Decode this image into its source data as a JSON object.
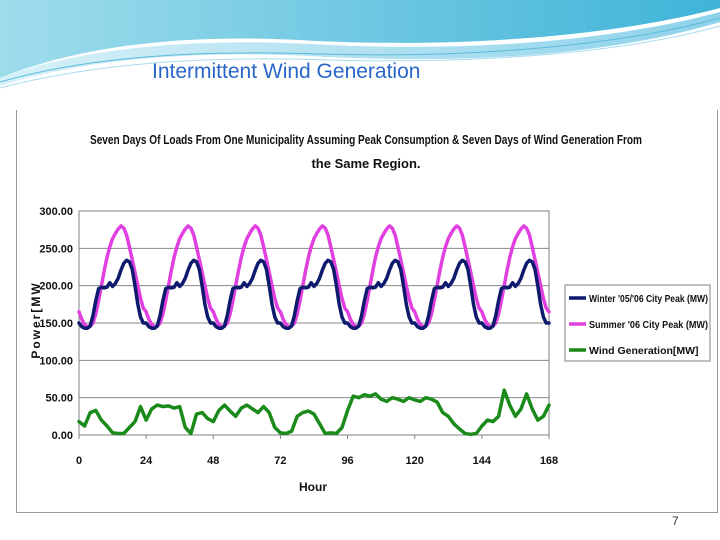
{
  "slide": {
    "title": "Intermittent Wind Generation",
    "page_number": "7"
  },
  "chart_data": {
    "type": "line",
    "title_line1": "Seven Days Of Loads From One Municipality Assuming Peak Consumption & Seven Days of Wind Generation From",
    "title_line2": "the Same Region.",
    "xlabel": "Hour",
    "ylabel": "Power[MW",
    "xlim": [
      0,
      168
    ],
    "ylim": [
      0,
      300
    ],
    "x_ticks": [
      "0",
      "24",
      "48",
      "72",
      "96",
      "120",
      "144",
      "168"
    ],
    "y_ticks": [
      "0.00",
      "50.00",
      "100.00",
      "150.00",
      "200.00",
      "250.00",
      "300.00"
    ],
    "grid": "horizontal",
    "legend_position": "right",
    "series": [
      {
        "name": "Winter '05/'06 City Peak (MW)",
        "color": "#0d1a6e",
        "x": [
          0,
          1,
          2,
          3,
          4,
          5,
          6,
          7,
          8,
          9,
          10,
          11,
          12,
          13,
          14,
          15,
          16,
          17,
          18,
          19,
          20,
          21,
          22,
          23
        ],
        "y_daily_profile": [
          150,
          145,
          143,
          143,
          146,
          160,
          180,
          196,
          198,
          197,
          198,
          204,
          199,
          203,
          210,
          221,
          230,
          234,
          232,
          222,
          200,
          175,
          158,
          150
        ],
        "repeat_days": 7
      },
      {
        "name": "Summer '06 City Peak (MW)",
        "color": "#e040e0",
        "x": [
          0,
          1,
          2,
          3,
          4,
          5,
          6,
          7,
          8,
          9,
          10,
          11,
          12,
          13,
          14,
          15,
          16,
          17,
          18,
          19,
          20,
          21,
          22,
          23
        ],
        "y_daily_profile": [
          165,
          155,
          148,
          145,
          146,
          150,
          162,
          180,
          200,
          220,
          238,
          252,
          263,
          270,
          276,
          280,
          277,
          268,
          252,
          235,
          218,
          200,
          183,
          170
        ],
        "repeat_days": 7
      },
      {
        "name": "Wind Generation[MW]",
        "color": "#1a8a1a",
        "x": [
          0,
          2,
          4,
          6,
          8,
          10,
          12,
          14,
          16,
          18,
          20,
          22,
          24,
          26,
          28,
          30,
          32,
          34,
          36,
          38,
          40,
          42,
          44,
          46,
          48,
          50,
          52,
          54,
          56,
          58,
          60,
          62,
          64,
          66,
          68,
          70,
          72,
          74,
          76,
          78,
          80,
          82,
          84,
          86,
          88,
          90,
          92,
          94,
          96,
          98,
          100,
          102,
          104,
          106,
          108,
          110,
          112,
          114,
          116,
          118,
          120,
          122,
          124,
          126,
          128,
          130,
          132,
          134,
          136,
          138,
          140,
          142,
          144,
          146,
          148,
          150,
          152,
          154,
          156,
          158,
          160,
          162,
          164,
          166,
          168
        ],
        "y": [
          18,
          12,
          30,
          33,
          20,
          12,
          3,
          2,
          2,
          10,
          18,
          38,
          20,
          35,
          40,
          38,
          39,
          36,
          38,
          10,
          2,
          28,
          30,
          22,
          18,
          33,
          40,
          32,
          25,
          36,
          40,
          35,
          30,
          38,
          30,
          10,
          3,
          2,
          5,
          25,
          30,
          32,
          28,
          15,
          2,
          3,
          2,
          10,
          33,
          52,
          50,
          54,
          52,
          55,
          48,
          45,
          50,
          48,
          45,
          50,
          47,
          45,
          50,
          48,
          44,
          30,
          25,
          15,
          8,
          2,
          1,
          2,
          12,
          20,
          18,
          25,
          60,
          40,
          25,
          35,
          55,
          35,
          20,
          25,
          40
        ]
      }
    ]
  }
}
